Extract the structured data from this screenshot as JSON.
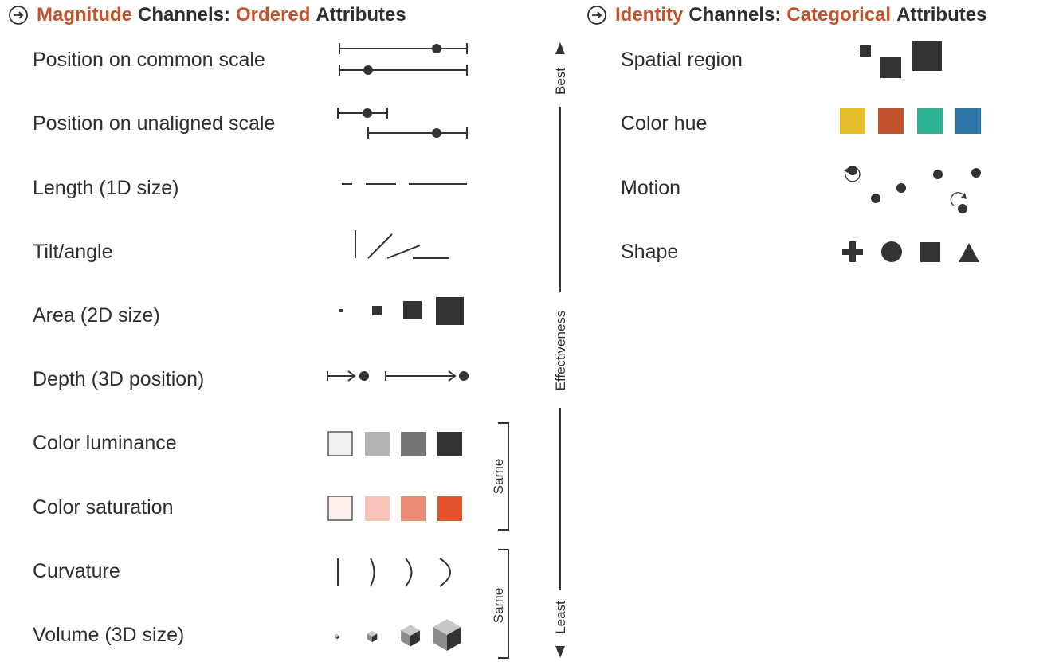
{
  "colors": {
    "accent": "#c4522a",
    "ink": "#333333",
    "hue_yellow": "#e6be2d",
    "hue_red": "#c4522a",
    "hue_teal": "#2bb393",
    "hue_blue": "#2e75ab",
    "lum": [
      "#f0f0f0",
      "#b3b3b3",
      "#767676",
      "#333333"
    ],
    "sat": [
      "#fdf1ee",
      "#f6c4b8",
      "#ec8c75",
      "#e2532f"
    ]
  },
  "left_heading": {
    "icon": "circled-arrow-icon",
    "w1": "Magnitude",
    "w2": "Channels:",
    "w3": "Ordered",
    "w4": "Attributes"
  },
  "right_heading": {
    "icon": "circled-arrow-icon",
    "w1": "Identity",
    "w2": "Channels:",
    "w3": "Categorical",
    "w4": "Attributes"
  },
  "magnitude_channels": [
    "Position on common scale",
    "Position on unaligned scale",
    "Length (1D size)",
    "Tilt/angle",
    "Area (2D size)",
    "Depth (3D position)",
    "Color luminance",
    "Color saturation",
    "Curvature",
    "Volume (3D size)"
  ],
  "identity_channels": [
    "Spatial region",
    "Color hue",
    "Motion",
    "Shape"
  ],
  "effectiveness": {
    "best": "Best",
    "axis": "Effectiveness",
    "least": "Least"
  },
  "same_labels": [
    "Same",
    "Same"
  ]
}
